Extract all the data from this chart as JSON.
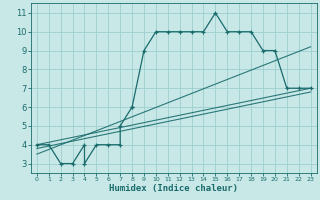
{
  "xlabel": "Humidex (Indice chaleur)",
  "bg_color": "#c8e8e8",
  "grid_color": "#9ecece",
  "line_color": "#1a6b6b",
  "xlim": [
    -0.5,
    23.5
  ],
  "ylim": [
    2.5,
    11.5
  ],
  "xticks": [
    0,
    1,
    2,
    3,
    4,
    5,
    6,
    7,
    8,
    9,
    10,
    11,
    12,
    13,
    14,
    15,
    16,
    17,
    18,
    19,
    20,
    21,
    22,
    23
  ],
  "yticks": [
    3,
    4,
    5,
    6,
    7,
    8,
    9,
    10,
    11
  ],
  "main_series": [
    [
      0,
      4
    ],
    [
      1,
      4
    ],
    [
      2,
      3
    ],
    [
      3,
      3
    ],
    [
      4,
      4
    ],
    [
      4,
      3
    ],
    [
      5,
      4
    ],
    [
      6,
      4
    ],
    [
      7,
      4
    ],
    [
      7,
      5
    ],
    [
      8,
      6
    ],
    [
      8,
      6
    ],
    [
      9,
      9
    ],
    [
      10,
      10
    ],
    [
      11,
      10
    ],
    [
      12,
      10
    ],
    [
      13,
      10
    ],
    [
      14,
      10
    ],
    [
      15,
      11
    ],
    [
      16,
      10
    ],
    [
      17,
      10
    ],
    [
      18,
      10
    ],
    [
      19,
      9
    ],
    [
      20,
      9
    ],
    [
      21,
      7
    ],
    [
      22,
      7
    ],
    [
      23,
      7
    ]
  ],
  "linear_lines": [
    {
      "x0": 0,
      "y0": 4.0,
      "x1": 23,
      "y1": 7.0
    },
    {
      "x0": 0,
      "y0": 3.8,
      "x1": 23,
      "y1": 6.8
    },
    {
      "x0": 0,
      "y0": 3.5,
      "x1": 23,
      "y1": 9.2
    }
  ]
}
